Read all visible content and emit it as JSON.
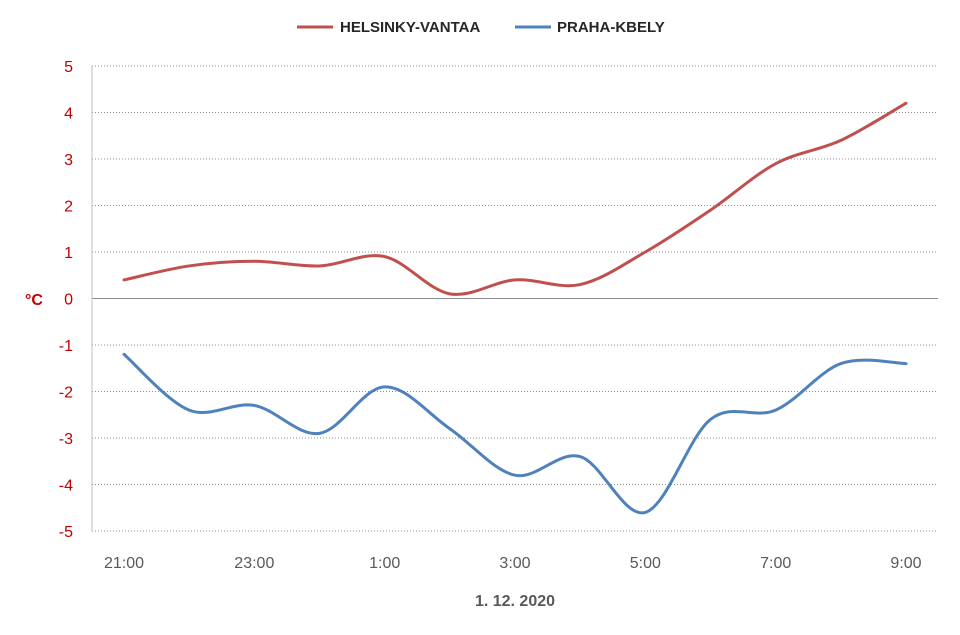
{
  "chart_data": {
    "type": "line",
    "title": "",
    "xlabel": "1. 12. 2020",
    "ylabel": "°C",
    "ylim": [
      -5,
      5
    ],
    "yticks": [
      "5",
      "4",
      "3",
      "2",
      "1",
      "0",
      "-1",
      "-2",
      "-3",
      "-4",
      "-5"
    ],
    "categories": [
      "21:00",
      "22:00",
      "23:00",
      "0:00",
      "1:00",
      "2:00",
      "3:00",
      "4:00",
      "5:00",
      "6:00",
      "7:00",
      "8:00",
      "9:00"
    ],
    "tick_labels": [
      "21:00",
      "23:00",
      "1:00",
      "3:00",
      "5:00",
      "7:00",
      "9:00"
    ],
    "grid": true,
    "legend_position": "top-center",
    "series": [
      {
        "name": "HELSINKY-VANTAA",
        "color": "#c0504d",
        "values": [
          0.4,
          0.7,
          0.8,
          0.7,
          0.9,
          0.1,
          0.4,
          0.3,
          1.0,
          1.9,
          2.9,
          3.4,
          4.2
        ]
      },
      {
        "name": "PRAHA-KBELY",
        "color": "#4f81bd",
        "values": [
          -1.2,
          -2.4,
          -2.3,
          -2.9,
          -1.9,
          -2.8,
          -3.8,
          -3.4,
          -4.6,
          -2.6,
          -2.4,
          -1.4,
          -1.4
        ]
      }
    ]
  }
}
